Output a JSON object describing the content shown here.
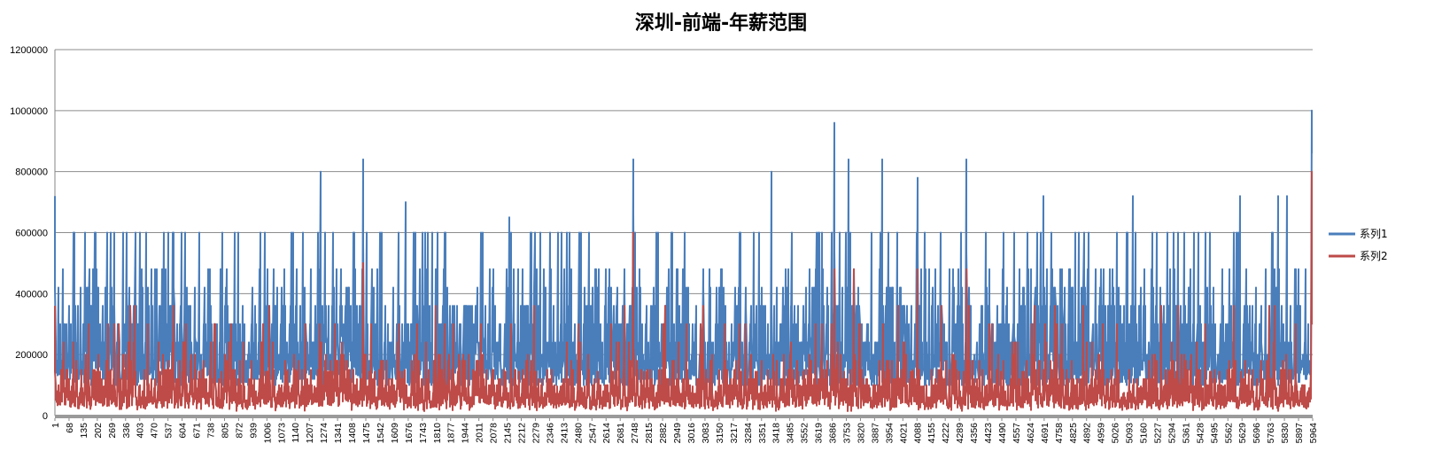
{
  "chart_data": {
    "type": "line",
    "title": "深圳-前端-年薪范围",
    "xlabel": "",
    "ylabel": "",
    "ylim": [
      0,
      1200000
    ],
    "yticks": [
      "0",
      "200000",
      "400000",
      "600000",
      "800000",
      "1000000",
      "1200000"
    ],
    "x_count": 5964,
    "x_ticks": [
      "1",
      "68",
      "135",
      "202",
      "269",
      "336",
      "403",
      "470",
      "537",
      "604",
      "671",
      "738",
      "805",
      "872",
      "939",
      "1006",
      "1073",
      "1140",
      "1207",
      "1274",
      "1341",
      "1408",
      "1475",
      "1542",
      "1609",
      "1676",
      "1743",
      "1810",
      "1877",
      "1944",
      "2011",
      "2078",
      "2145",
      "2212",
      "2279",
      "2346",
      "2413",
      "2480",
      "2547",
      "2614",
      "2681",
      "2748",
      "2815",
      "2882",
      "2949",
      "3016",
      "3083",
      "3150",
      "3217",
      "3284",
      "3351",
      "3418",
      "3485",
      "3552",
      "3619",
      "3686",
      "3753",
      "3820",
      "3887",
      "3954",
      "4021",
      "4088",
      "4155",
      "4222",
      "4289",
      "4356",
      "4423",
      "4490",
      "4557",
      "4624",
      "4691",
      "4758",
      "4825",
      "4892",
      "4959",
      "5026",
      "5093",
      "5160",
      "5227",
      "5294",
      "5361",
      "5428",
      "5495",
      "5562",
      "5629",
      "5696",
      "5763",
      "5830",
      "5897",
      "5964"
    ],
    "grid": "horizontal",
    "legend_position": "right",
    "series": [
      {
        "name": "系列1",
        "color": "#4a7ebb",
        "typical_range": [
          120000,
          360000
        ],
        "notable_peaks": [
          {
            "x": 1,
            "y": 720000
          },
          {
            "x": 190,
            "y": 600000
          },
          {
            "x": 385,
            "y": 600000
          },
          {
            "x": 600,
            "y": 600000
          },
          {
            "x": 1178,
            "y": 600000
          },
          {
            "x": 1260,
            "y": 800000
          },
          {
            "x": 1420,
            "y": 600000
          },
          {
            "x": 1462,
            "y": 840000
          },
          {
            "x": 1665,
            "y": 700000
          },
          {
            "x": 2030,
            "y": 600000
          },
          {
            "x": 2156,
            "y": 650000
          },
          {
            "x": 2742,
            "y": 840000
          },
          {
            "x": 3398,
            "y": 800000
          },
          {
            "x": 3697,
            "y": 960000
          },
          {
            "x": 3762,
            "y": 840000
          },
          {
            "x": 3922,
            "y": 840000
          },
          {
            "x": 4091,
            "y": 780000
          },
          {
            "x": 4322,
            "y": 840000
          },
          {
            "x": 4687,
            "y": 720000
          },
          {
            "x": 5110,
            "y": 720000
          },
          {
            "x": 5620,
            "y": 720000
          },
          {
            "x": 5800,
            "y": 720000
          },
          {
            "x": 5842,
            "y": 720000
          },
          {
            "x": 5958,
            "y": 1000000
          }
        ]
      },
      {
        "name": "系列2",
        "color": "#be4b48",
        "typical_range": [
          60000,
          240000
        ],
        "notable_peaks": [
          {
            "x": 1,
            "y": 360000
          },
          {
            "x": 1462,
            "y": 500000
          },
          {
            "x": 2742,
            "y": 600000
          },
          {
            "x": 3697,
            "y": 480000
          },
          {
            "x": 3790,
            "y": 480000
          },
          {
            "x": 4091,
            "y": 480000
          },
          {
            "x": 4322,
            "y": 480000
          },
          {
            "x": 5958,
            "y": 800000
          }
        ]
      }
    ]
  }
}
